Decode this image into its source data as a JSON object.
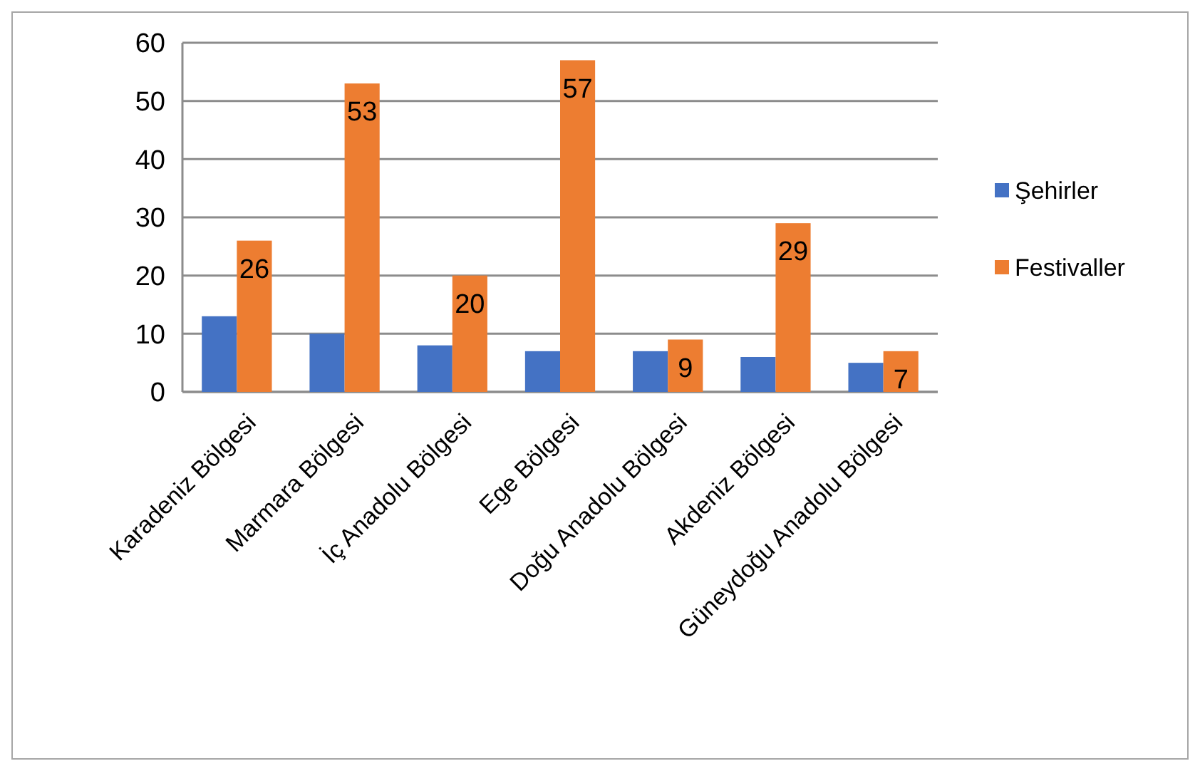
{
  "chart_data": {
    "type": "bar",
    "categories": [
      "Karadeniz Bölgesi",
      "Marmara Bölgesi",
      "İç Anadolu Bölgesi",
      "Ege Bölgesi",
      "Doğu Anadolu Bölgesi",
      "Akdeniz Bölgesi",
      "Güneydoğu Anadolu Bölgesi"
    ],
    "series": [
      {
        "name": "Şehirler",
        "color": "#4472c4",
        "values": [
          13,
          10,
          8,
          7,
          7,
          6,
          5
        ]
      },
      {
        "name": "Festivaller",
        "color": "#ed7d31",
        "values": [
          26,
          53,
          20,
          57,
          9,
          29,
          7
        ],
        "value_labels": [
          "26",
          "53",
          "20",
          "57",
          "9",
          "29",
          "7"
        ]
      }
    ],
    "ylim": [
      0,
      60
    ],
    "yticks": [
      0,
      10,
      20,
      30,
      40,
      50,
      60
    ],
    "grid": "y",
    "legend": "right"
  }
}
